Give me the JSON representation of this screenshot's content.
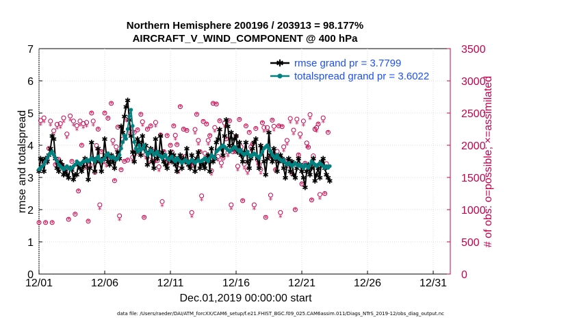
{
  "chart_data": {
    "type": "line",
    "title_line1": "Northern Hemisphere 200196 / 203913 = 98.177%",
    "title_line2": "AIRCRAFT_V_WIND_COMPONENT @ 400 hPa",
    "xlabel": "Dec.01,2019 00:00:00 start",
    "ylabel": "rmse and totalspread",
    "y2label": "# of obs: o=possible; ×=assimilated",
    "xlim": [
      0,
      31.3
    ],
    "ylim": [
      0,
      7
    ],
    "y2lim": [
      0,
      3500
    ],
    "x_ticks": [
      0,
      5,
      10,
      15,
      20,
      25,
      30
    ],
    "x_tick_labels": [
      "12/01",
      "12/06",
      "12/11",
      "12/16",
      "12/21",
      "12/26",
      "12/31"
    ],
    "y_ticks": [
      "0",
      "1",
      "2",
      "3",
      "4",
      "5",
      "6",
      "7"
    ],
    "y2_ticks": [
      "0",
      "500",
      "1000",
      "1500",
      "2000",
      "2500",
      "3000",
      "3500"
    ],
    "time_step_days": 0.125,
    "legend": {
      "rmse_label": "rmse grand pr = 3.7799",
      "spread_label": "totalspread grand pr = 3.6022"
    },
    "series": [
      {
        "name": "rmse",
        "color": "#000000",
        "marker": "star",
        "values": [
          3.2,
          3.6,
          3.55,
          3.2,
          3.6,
          3.5,
          3.7,
          3.9,
          4.3,
          4.2,
          3.6,
          3.3,
          3.2,
          3.5,
          3.4,
          3.1,
          3.2,
          3.1,
          3.0,
          3.3,
          3.25,
          2.95,
          3.1,
          3.1,
          3.4,
          3.3,
          3.2,
          3.35,
          3.6,
          3.5,
          2.95,
          3.3,
          4.1,
          3.6,
          3.2,
          3.5,
          3.9,
          3.5,
          3.2,
          3.6,
          4.2,
          3.7,
          3.5,
          3.4,
          3.7,
          3.5,
          3.3,
          3.6,
          3.8,
          3.6,
          4.6,
          4.4,
          4.9,
          5.2,
          5.4,
          4.8,
          4.3,
          3.8,
          3.5,
          3.8,
          4.2,
          4.1,
          3.7,
          4.3,
          3.9,
          4.0,
          3.4,
          3.8,
          3.9,
          3.5,
          3.3,
          4.2,
          3.6,
          3.7,
          4.3,
          3.8,
          3.5,
          3.4,
          3.3,
          3.6,
          3.8,
          3.5,
          3.7,
          3.4,
          3.2,
          3.5,
          3.7,
          3.3,
          3.6,
          3.5,
          3.9,
          3.4,
          3.3,
          3.7,
          3.5,
          3.2,
          3.6,
          3.8,
          3.3,
          3.5,
          3.4,
          3.3,
          3.5,
          3.7,
          3.2,
          3.9,
          3.5,
          3.6,
          4.1,
          4.2,
          4.5,
          3.9,
          3.7,
          4.3,
          4.8,
          4.6,
          4.0,
          4.4,
          3.9,
          4.2,
          4.3,
          3.8,
          4.1,
          3.7,
          3.5,
          3.8,
          4.1,
          3.5,
          3.3,
          3.6,
          3.9,
          4.1,
          4.2,
          3.6,
          3.3,
          4.0,
          3.9,
          3.5,
          3.1,
          3.6,
          4.4,
          3.7,
          3.5,
          3.9,
          3.6,
          3.2,
          3.5,
          3.7,
          3.6,
          3.3,
          3.0,
          3.4,
          3.6,
          3.2,
          3.5,
          3.1,
          3.0,
          3.3,
          3.6,
          3.4,
          3.2,
          3.0,
          2.7,
          3.2,
          3.4,
          3.1,
          3.3,
          3.6,
          2.9,
          3.1,
          3.3,
          3.0,
          3.5,
          3.6,
          3.3,
          3.1,
          3.0,
          2.9
        ]
      },
      {
        "name": "totalspread",
        "color": "#00807f",
        "marker": "circle",
        "values": [
          3.25,
          3.3,
          3.35,
          3.4,
          3.5,
          3.6,
          3.7,
          3.75,
          3.8,
          3.7,
          3.6,
          3.5,
          3.4,
          3.35,
          3.3,
          3.25,
          3.3,
          3.35,
          3.3,
          3.25,
          3.3,
          3.35,
          3.4,
          3.5,
          3.45,
          3.4,
          3.45,
          3.5,
          3.5,
          3.55,
          3.5,
          3.55,
          3.6,
          3.55,
          3.5,
          3.6,
          3.65,
          3.55,
          3.5,
          3.55,
          3.6,
          3.7,
          3.75,
          3.65,
          3.6,
          3.65,
          3.6,
          3.55,
          3.6,
          3.7,
          3.9,
          4.1,
          4.3,
          4.2,
          4.5,
          4.9,
          5.1,
          4.6,
          4.1,
          3.9,
          3.8,
          4.0,
          3.85,
          3.9,
          4.0,
          3.8,
          3.7,
          3.75,
          3.85,
          3.8,
          3.7,
          3.75,
          3.8,
          3.7,
          3.65,
          3.6,
          3.65,
          3.7,
          3.6,
          3.55,
          3.6,
          3.65,
          3.55,
          3.5,
          3.6,
          3.55,
          3.5,
          3.45,
          3.5,
          3.55,
          3.5,
          3.45,
          3.5,
          3.55,
          3.5,
          3.45,
          3.5,
          3.55,
          3.5,
          3.5,
          3.55,
          3.6,
          3.55,
          3.5,
          3.6,
          3.7,
          3.65,
          3.6,
          3.8,
          3.85,
          3.9,
          3.95,
          4.0,
          3.95,
          3.9,
          3.85,
          3.8,
          3.85,
          3.9,
          3.95,
          3.9,
          3.85,
          3.8,
          3.85,
          3.75,
          3.7,
          3.75,
          3.8,
          3.7,
          3.65,
          3.7,
          3.75,
          3.7,
          3.65,
          3.6,
          3.7,
          3.8,
          3.9,
          3.95,
          4.0,
          3.9,
          3.8,
          3.7,
          3.65,
          3.6,
          3.7,
          3.6,
          3.55,
          3.5,
          3.55,
          3.45,
          3.4,
          3.45,
          3.4,
          3.35,
          3.4,
          3.45,
          3.4,
          3.35,
          3.4,
          3.35,
          3.3,
          3.4,
          3.35,
          3.3,
          3.4,
          3.5,
          3.45,
          3.4,
          3.35,
          3.4,
          3.45,
          3.4,
          3.35,
          3.3,
          3.35,
          3.3,
          3.35
        ]
      },
      {
        "name": "possible",
        "color": "#c8004b",
        "marker": "o",
        "axis": "right",
        "values": [
          800,
          2310,
          1750,
          2350,
          800,
          1700,
          1950,
          2300,
          800,
          2150,
          1700,
          2250,
          1780,
          2260,
          1690,
          2350,
          1600,
          2100,
          850,
          2380,
          1750,
          2300,
          930,
          2230,
          1290,
          2300,
          2000,
          2260,
          1660,
          2280,
          820,
          1620,
          2500,
          2300,
          1580,
          1920,
          2250,
          1000,
          1900,
          1710,
          2500,
          1660,
          2420,
          1750,
          2650,
          2000,
          1450,
          1900,
          2280,
          830,
          1620,
          2020,
          1750,
          2360,
          1770,
          2160,
          2260,
          1740,
          2200,
          1840,
          2240,
          1840,
          2480,
          2290,
          880,
          1780,
          2250,
          1700,
          2300,
          1840,
          1750,
          2280,
          1760,
          1590,
          2160,
          1050,
          1900,
          1730,
          2150,
          1690,
          2000,
          1820,
          2300,
          2080,
          2010,
          1560,
          2600,
          1750,
          2250,
          1750,
          2230,
          1660,
          1700,
          880,
          1690,
          2170,
          2480,
          2000,
          1900,
          1140,
          2370,
          1800,
          2330,
          2000,
          2150,
          1530,
          2650,
          2200,
          2640,
          1750,
          2380,
          1650,
          1800,
          2270,
          2100,
          1820,
          2380,
          1000,
          1900,
          1870,
          2140,
          1600,
          2400,
          1900,
          1140,
          1630,
          2300,
          1540,
          2200,
          1900,
          2020,
          1000,
          2260,
          1700,
          1700,
          1550,
          2350,
          2200,
          880,
          2200,
          1820,
          1150,
          2390,
          2220,
          1620,
          1830,
          2300,
          880,
          2290,
          1900,
          1760,
          2000,
          1680,
          2340,
          1560,
          2160,
          1000,
          2330,
          1850,
          2100,
          1400,
          2300,
          1720,
          1960,
          1970,
          2400,
          1150,
          1760,
          2250,
          2200,
          2330,
          1160,
          1700,
          2350,
          1250,
          1640,
          2200
        ]
      }
    ]
  },
  "footer": "data file: /Users/raeder/DAI/ATM_forcXX/CAM6_setup/f.e21.FHIST_BGC.f09_025.CAM6assim.011/Diags_NTrS_2019-12/obs_diag_output.nc"
}
